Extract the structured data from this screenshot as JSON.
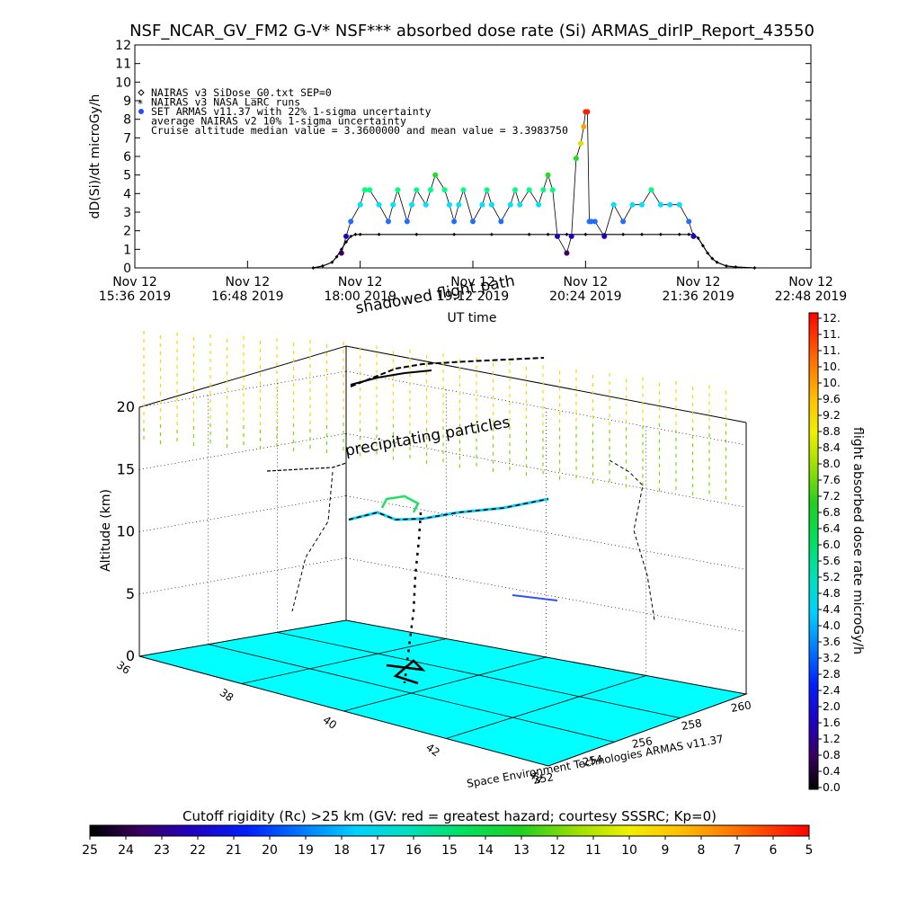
{
  "title": "NSF_NCAR_GV_FM2 G-V* NSF*** absorbed dose rate (Si) ARMAS_dirIP_Report_43550",
  "chart_data": [
    {
      "type": "line",
      "name": "top-timeseries",
      "ylabel": "dD(Si)/dt microGy/h",
      "xlabel": "UT time",
      "ylim": [
        0,
        12
      ],
      "yticks": [
        "0",
        "1",
        "2",
        "3",
        "4",
        "5",
        "6",
        "7",
        "8",
        "9",
        "10",
        "11",
        "12"
      ],
      "xticks": [
        {
          "l1": "Nov 12",
          "l2": "15:36 2019"
        },
        {
          "l1": "Nov 12",
          "l2": "16:48 2019"
        },
        {
          "l1": "Nov 12",
          "l2": "18:00 2019"
        },
        {
          "l1": "Nov 12",
          "l2": "19:12 2019"
        },
        {
          "l1": "Nov 12",
          "l2": "20:24 2019"
        },
        {
          "l1": "Nov 12",
          "l2": "21:36 2019"
        },
        {
          "l1": "Nov 12",
          "l2": "22:48 2019"
        }
      ],
      "legend": [
        {
          "symbol": "diamond",
          "text": "NAIRAS v3 SiDose_G0.txt SEP=0"
        },
        {
          "symbol": "star",
          "text": "NAIRAS v3 NASA LaRC runs"
        },
        {
          "symbol": "dot",
          "text": "SET ARMAS v11.37 with 22% 1-sigma uncertainty"
        },
        {
          "symbol": "none",
          "text": "average NAIRAS v2 10% 1-sigma uncertainty"
        },
        {
          "symbol": "none",
          "text": "Cruise altitude median value = 3.3600000 and mean value = 3.3983750"
        }
      ],
      "annotation": "shadowed flight path",
      "series": [
        {
          "name": "NAIRAS v3 SiDose_G0.txt SEP=0",
          "x_hours": [
            17.5,
            17.6,
            17.7,
            17.75,
            17.8,
            17.85,
            17.9,
            17.95,
            18.0,
            18.2,
            18.6,
            19.0,
            19.4,
            19.8,
            20.0,
            20.2,
            20.4,
            20.6,
            20.8,
            21.0,
            21.2,
            21.4,
            21.5,
            21.55,
            21.6,
            21.65,
            21.7,
            21.75,
            21.8,
            21.9,
            22.0,
            22.2
          ],
          "values": [
            0.0,
            0.1,
            0.3,
            0.6,
            1.0,
            1.4,
            1.7,
            1.8,
            1.8,
            1.8,
            1.8,
            1.8,
            1.8,
            1.8,
            1.8,
            1.8,
            1.8,
            1.8,
            1.8,
            1.8,
            1.8,
            1.8,
            1.8,
            1.8,
            1.6,
            1.2,
            0.8,
            0.5,
            0.3,
            0.1,
            0.05,
            0.0
          ]
        },
        {
          "name": "SET ARMAS v11.37 with 22% 1-sigma uncertainty",
          "x_hours": [
            17.8,
            17.85,
            17.9,
            18.0,
            18.05,
            18.1,
            18.2,
            18.3,
            18.35,
            18.4,
            18.5,
            18.55,
            18.6,
            18.7,
            18.75,
            18.8,
            18.9,
            18.95,
            19.0,
            19.05,
            19.1,
            19.2,
            19.3,
            19.35,
            19.4,
            19.5,
            19.6,
            19.65,
            19.7,
            19.8,
            19.9,
            19.95,
            20.0,
            20.05,
            20.1,
            20.2,
            20.25,
            20.3,
            20.35,
            20.38,
            20.4,
            20.42,
            20.44,
            20.46,
            20.5,
            20.6,
            20.7,
            20.8,
            20.9,
            21.0,
            21.1,
            21.2,
            21.3,
            21.4,
            21.5,
            21.55
          ],
          "values": [
            0.8,
            1.7,
            2.5,
            3.4,
            4.2,
            4.2,
            3.4,
            2.5,
            3.4,
            4.2,
            2.5,
            3.4,
            4.2,
            3.4,
            4.2,
            5.0,
            4.2,
            3.4,
            2.5,
            3.4,
            4.2,
            2.5,
            3.4,
            4.2,
            3.4,
            2.5,
            3.4,
            4.2,
            3.4,
            4.2,
            3.4,
            4.2,
            5.0,
            4.2,
            1.7,
            0.8,
            1.7,
            5.9,
            6.7,
            7.6,
            8.4,
            8.4,
            2.5,
            2.5,
            2.5,
            1.7,
            3.4,
            2.5,
            3.4,
            3.4,
            4.2,
            3.4,
            3.4,
            3.4,
            2.5,
            1.7
          ]
        }
      ]
    },
    {
      "type": "scatter",
      "name": "3d-flight-path",
      "ylabel": "Altitude (km)",
      "zticks": [
        "0",
        "5",
        "10",
        "15",
        "20"
      ],
      "lat_ticks": [
        "36",
        "38",
        "40",
        "42",
        "44"
      ],
      "lon_ticks": [
        "252",
        "254",
        "256",
        "258",
        "260"
      ],
      "annotation": "precipitating particles",
      "credit": "Space Environment Technologies ARMAS v11.37"
    }
  ],
  "colorbar_right": {
    "label": "flight absorbed dose rate microGy/h",
    "ticks": [
      "12.",
      "11.",
      "11.",
      "10.",
      "10.",
      "9.6",
      "9.2",
      "8.8",
      "8.4",
      "8.0",
      "7.6",
      "7.2",
      "6.8",
      "6.4",
      "6.0",
      "5.6",
      "5.2",
      "4.8",
      "4.4",
      "4.0",
      "3.6",
      "3.2",
      "2.8",
      "2.4",
      "2.0",
      "1.6",
      "1.2",
      "0.8",
      "0.4",
      "0.0"
    ]
  },
  "colorbar_bottom": {
    "label": "Cutoff rigidity (Rc) >25 km (GV: red = greatest hazard; courtesy SSSRC; Kp=0)",
    "ticks": [
      "25",
      "24",
      "23",
      "22",
      "21",
      "20",
      "19",
      "18",
      "17",
      "16",
      "15",
      "14",
      "13",
      "12",
      "11",
      "10",
      "9",
      "8",
      "7",
      "6",
      "5"
    ]
  },
  "colors": {
    "ground": "#00ffff",
    "frame": "#000000",
    "leg_dot": "#1f4fff"
  }
}
